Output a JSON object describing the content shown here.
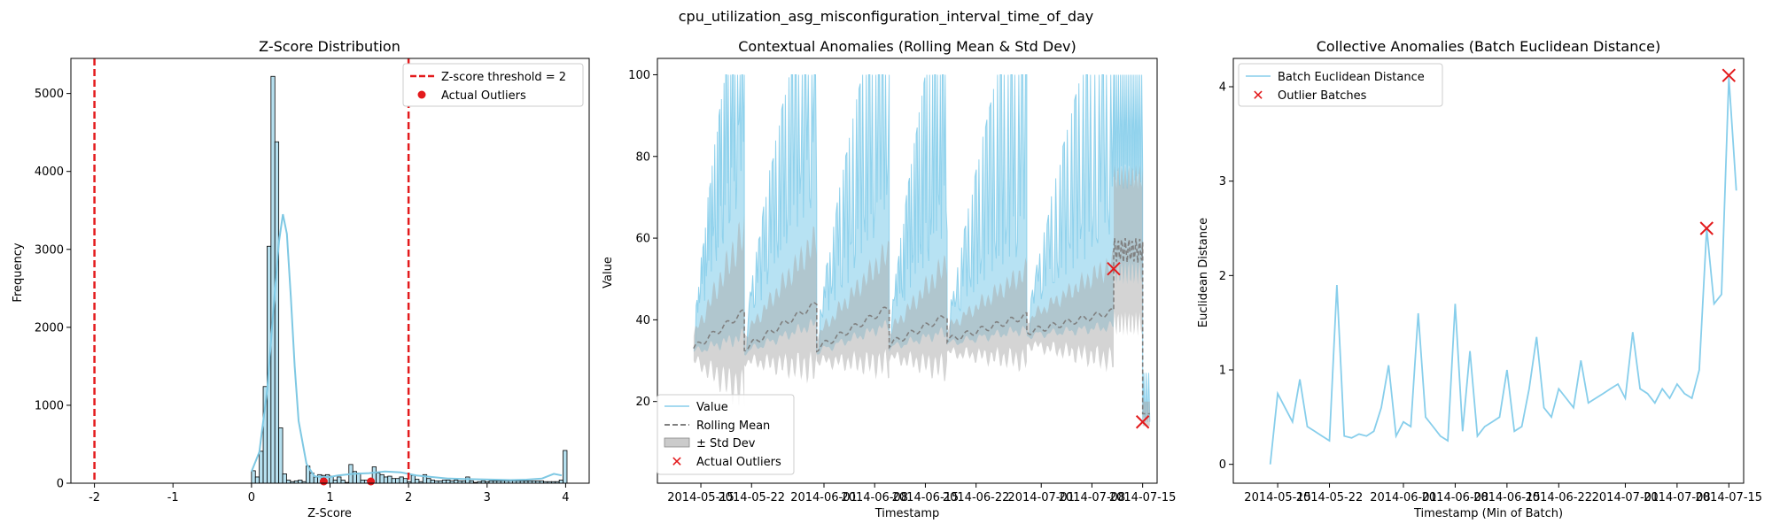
{
  "suptitle": "cpu_utilization_asg_misconfiguration_interval_time_of_day",
  "chart_data": [
    {
      "type": "bar",
      "title": "Z-Score Distribution",
      "xlabel": "Z-Score",
      "ylabel": "Frequency",
      "xlim": [
        -2.3,
        4.3
      ],
      "ylim": [
        0,
        5450
      ],
      "xticks": [
        "-2",
        "-1",
        "0",
        "1",
        "2",
        "3",
        "4"
      ],
      "xtick_values": [
        -2,
        -1,
        0,
        1,
        2,
        3,
        4
      ],
      "yticks": [
        "0",
        "1000",
        "2000",
        "3000",
        "4000",
        "5000"
      ],
      "ytick_values": [
        0,
        1000,
        2000,
        3000,
        4000,
        5000
      ],
      "bin_start": 0,
      "bin_width": 0.0496,
      "bin_counts": [
        160,
        80,
        410,
        1240,
        3040,
        5220,
        4380,
        710,
        120,
        40,
        20,
        30,
        40,
        20,
        220,
        130,
        80,
        110,
        100,
        110,
        90,
        40,
        80,
        40,
        10,
        240,
        150,
        130,
        40,
        40,
        50,
        210,
        130,
        110,
        80,
        90,
        60,
        60,
        80,
        60,
        20,
        100,
        50,
        20,
        110,
        60,
        40,
        30,
        30,
        40,
        40,
        30,
        40,
        30,
        30,
        80,
        30,
        10,
        20,
        30,
        20,
        30,
        30,
        30,
        30,
        30,
        30,
        30,
        30,
        30,
        30,
        30,
        30,
        30,
        30,
        20,
        20,
        20,
        20,
        40,
        420
      ],
      "kde": {
        "x": [
          0,
          0.1,
          0.2,
          0.3,
          0.35,
          0.4,
          0.45,
          0.5,
          0.55,
          0.6,
          0.7,
          0.8,
          0.9,
          1.0,
          1.1,
          1.3,
          1.5,
          1.7,
          1.9,
          2.1,
          2.3,
          2.5,
          2.7,
          2.9,
          3.1,
          3.3,
          3.5,
          3.7,
          3.85,
          3.95
        ],
        "y": [
          150,
          400,
          1200,
          2500,
          3100,
          3450,
          3200,
          2400,
          1500,
          800,
          250,
          90,
          80,
          80,
          100,
          120,
          130,
          150,
          140,
          100,
          80,
          60,
          55,
          50,
          45,
          40,
          45,
          60,
          120,
          100
        ]
      },
      "threshold_lines": [
        -2,
        2
      ],
      "actual_outliers_x": [
        0.92,
        1.52
      ],
      "legend": [
        "Z-score threshold = 2",
        "Actual Outliers"
      ],
      "legend_position": "top-right",
      "colors": {
        "bar_fill": "#b6e0ef",
        "bar_edge": "#000000",
        "kde": "#7ec8e3",
        "threshold": "#e31a1c",
        "outlier": "#e31a1c"
      }
    },
    {
      "type": "line",
      "title": "Contextual Anomalies (Rolling Mean & Std Dev)",
      "xlabel": "Timestamp",
      "ylabel": "Value",
      "xlim": [
        "2014-05-09",
        "2014-07-17"
      ],
      "ylim": [
        0,
        104
      ],
      "xticks": [
        "2014-05-15",
        "2014-05-22",
        "2014-06-01",
        "2014-06-08",
        "2014-06-15",
        "2014-06-22",
        "2014-07-01",
        "2014-07-08",
        "2014-07-15"
      ],
      "yticks": [
        "20",
        "40",
        "60",
        "80",
        "100"
      ],
      "ytick_values": [
        20,
        40,
        60,
        80,
        100
      ],
      "segments": [
        {
          "start": "2014-05-14",
          "end": "2014-05-21",
          "mean_start": 33,
          "mean_end": 42,
          "std_start": 3,
          "std_end": 20,
          "peak": 100
        },
        {
          "start": "2014-05-21",
          "end": "2014-05-31",
          "mean_start": 33,
          "mean_end": 44,
          "std_start": 3,
          "std_end": 16,
          "peak": 100
        },
        {
          "start": "2014-05-31",
          "end": "2014-06-10",
          "mean_start": 33,
          "mean_end": 43,
          "std_start": 3,
          "std_end": 14,
          "peak": 100
        },
        {
          "start": "2014-06-10",
          "end": "2014-06-18",
          "mean_start": 34,
          "mean_end": 41,
          "std_start": 3,
          "std_end": 13,
          "peak": 100
        },
        {
          "start": "2014-06-18",
          "end": "2014-06-29",
          "mean_start": 35,
          "mean_end": 41,
          "std_start": 3,
          "std_end": 11,
          "peak": 100
        },
        {
          "start": "2014-06-29",
          "end": "2014-07-11",
          "mean_start": 37,
          "mean_end": 42,
          "std_start": 3,
          "std_end": 12,
          "peak": 100
        }
      ],
      "tail": {
        "start": "2014-07-11",
        "end": "2014-07-15",
        "mean": 57,
        "std": 18,
        "low_start": "2014-07-15",
        "low_end": "2014-07-16",
        "low_value": 15
      },
      "actual_outliers": [
        {
          "x": "2014-07-11",
          "y": 52.5
        },
        {
          "x": "2014-07-15",
          "y": 15
        }
      ],
      "legend": [
        "Value",
        "Rolling Mean",
        "± Std Dev",
        "Actual Outliers"
      ],
      "legend_position": "bottom-left",
      "colors": {
        "value": "#87ceeb",
        "mean": "#808080",
        "std": "#a9a9a9",
        "outlier": "#e31a1c"
      }
    },
    {
      "type": "line",
      "title": "Collective Anomalies (Batch Euclidean Distance)",
      "xlabel": "Timestamp (Min of Batch)",
      "ylabel": "Euclidean Distance",
      "xlim": [
        "2014-05-09",
        "2014-07-17"
      ],
      "ylim": [
        -0.2,
        4.3
      ],
      "xticks": [
        "2014-05-15",
        "2014-05-22",
        "2014-06-01",
        "2014-06-08",
        "2014-06-15",
        "2014-06-22",
        "2014-07-01",
        "2014-07-08",
        "2014-07-15"
      ],
      "yticks": [
        "0",
        "1",
        "2",
        "3",
        "4"
      ],
      "ytick_values": [
        0,
        1,
        2,
        3,
        4
      ],
      "series": [
        {
          "name": "Batch Euclidean Distance",
          "x": [
            "2014-05-14",
            "2014-05-15",
            "2014-05-16",
            "2014-05-17",
            "2014-05-18",
            "2014-05-19",
            "2014-05-20",
            "2014-05-21",
            "2014-05-22",
            "2014-05-23",
            "2014-05-24",
            "2014-05-25",
            "2014-05-26",
            "2014-05-27",
            "2014-05-28",
            "2014-05-29",
            "2014-05-30",
            "2014-05-31",
            "2014-06-01",
            "2014-06-02",
            "2014-06-03",
            "2014-06-04",
            "2014-06-05",
            "2014-06-06",
            "2014-06-07",
            "2014-06-08",
            "2014-06-09",
            "2014-06-10",
            "2014-06-11",
            "2014-06-12",
            "2014-06-13",
            "2014-06-14",
            "2014-06-15",
            "2014-06-16",
            "2014-06-17",
            "2014-06-18",
            "2014-06-19",
            "2014-06-20",
            "2014-06-21",
            "2014-06-22",
            "2014-06-23",
            "2014-06-24",
            "2014-06-25",
            "2014-06-26",
            "2014-06-27",
            "2014-06-28",
            "2014-06-29",
            "2014-06-30",
            "2014-07-01",
            "2014-07-02",
            "2014-07-03",
            "2014-07-04",
            "2014-07-05",
            "2014-07-06",
            "2014-07-07",
            "2014-07-08",
            "2014-07-09",
            "2014-07-10",
            "2014-07-11",
            "2014-07-12",
            "2014-07-13",
            "2014-07-14",
            "2014-07-15",
            "2014-07-16"
          ],
          "y": [
            0.0,
            0.75,
            0.6,
            0.45,
            0.9,
            0.4,
            0.35,
            0.3,
            0.25,
            1.9,
            0.3,
            0.28,
            0.32,
            0.3,
            0.35,
            0.6,
            1.05,
            0.3,
            0.45,
            0.4,
            1.6,
            0.5,
            0.4,
            0.3,
            0.25,
            1.7,
            0.35,
            1.2,
            0.3,
            0.4,
            0.45,
            0.5,
            1.0,
            0.35,
            0.4,
            0.8,
            1.35,
            0.6,
            0.5,
            0.8,
            0.7,
            0.6,
            1.1,
            0.65,
            0.7,
            0.75,
            0.8,
            0.85,
            0.7,
            1.4,
            0.8,
            0.75,
            0.65,
            0.8,
            0.7,
            0.85,
            0.75,
            0.7,
            1.0,
            2.5,
            1.7,
            1.8,
            4.1,
            2.9
          ]
        }
      ],
      "outlier_batches": [
        {
          "x": "2014-07-12",
          "y": 2.5
        },
        {
          "x": "2014-07-15",
          "y": 4.12
        }
      ],
      "legend": [
        "Batch Euclidean Distance",
        "Outlier Batches"
      ],
      "legend_position": "top-left",
      "colors": {
        "line": "#87ceeb",
        "outlier": "#e31a1c"
      }
    }
  ]
}
